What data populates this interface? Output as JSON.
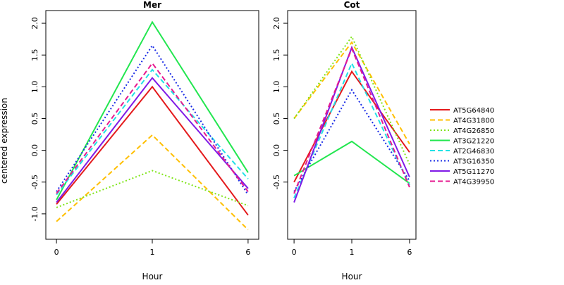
{
  "chart_data": [
    {
      "type": "line",
      "title": "Mer",
      "xlabel": "Hour",
      "ylabel": "centered expression",
      "x": [
        "0",
        "1",
        "6"
      ],
      "ylim": [
        -1.4,
        2.2
      ],
      "yticks": [
        -1.0,
        -0.5,
        0.0,
        0.5,
        1.0,
        1.5,
        2.0
      ],
      "yticklabels": [
        "-1.0",
        "-0.5",
        "0.0",
        "0.5",
        "1.0",
        "1.5",
        "2.0"
      ],
      "grid": false,
      "series": [
        {
          "name": "AT5G64840",
          "values": [
            -0.85,
            1.0,
            -1.02
          ]
        },
        {
          "name": "AT4G31800",
          "values": [
            -1.12,
            0.24,
            -1.25
          ]
        },
        {
          "name": "AT4G26850",
          "values": [
            -0.9,
            -0.32,
            -0.87
          ]
        },
        {
          "name": "AT3G21220",
          "values": [
            -0.78,
            2.02,
            -0.35
          ]
        },
        {
          "name": "AT2G46830",
          "values": [
            -0.7,
            1.27,
            -0.45
          ]
        },
        {
          "name": "AT3G16350",
          "values": [
            -0.65,
            1.65,
            -0.7
          ]
        },
        {
          "name": "AT5G11270",
          "values": [
            -0.82,
            1.14,
            -0.6
          ]
        },
        {
          "name": "AT4G39950",
          "values": [
            -0.68,
            1.37,
            -0.65
          ]
        }
      ]
    },
    {
      "type": "line",
      "title": "Cot",
      "xlabel": "Hour",
      "ylabel": "",
      "x": [
        "0",
        "1",
        "6"
      ],
      "ylim": [
        -1.4,
        2.2
      ],
      "yticks": [
        -0.5,
        0.0,
        0.5,
        1.0,
        1.5,
        2.0
      ],
      "yticklabels": [
        "-0.5",
        "0.0",
        "0.5",
        "1.0",
        "1.5",
        "2.0"
      ],
      "grid": false,
      "series": [
        {
          "name": "AT5G64840",
          "values": [
            -0.5,
            1.24,
            -0.03
          ]
        },
        {
          "name": "AT4G31800",
          "values": [
            0.5,
            1.7,
            0.1
          ]
        },
        {
          "name": "AT4G26850",
          "values": [
            0.5,
            1.79,
            -0.22
          ]
        },
        {
          "name": "AT3G21220",
          "values": [
            -0.4,
            0.14,
            -0.52
          ]
        },
        {
          "name": "AT2G46830",
          "values": [
            -0.75,
            1.37,
            -0.55
          ]
        },
        {
          "name": "AT3G16350",
          "values": [
            -0.65,
            0.95,
            -0.48
          ]
        },
        {
          "name": "AT5G11270",
          "values": [
            -0.82,
            1.62,
            -0.42
          ]
        },
        {
          "name": "AT4G39950",
          "values": [
            -0.68,
            1.6,
            -0.58
          ]
        }
      ]
    }
  ],
  "legend": {
    "position": "right",
    "entries": [
      {
        "label": "AT5G64840",
        "color": "#e41a1c",
        "dash": "solid"
      },
      {
        "label": "AT4G31800",
        "color": "#ffbf00",
        "dash": "dashed"
      },
      {
        "label": "AT4G26850",
        "color": "#80e51a",
        "dash": "dotted"
      },
      {
        "label": "AT3G21220",
        "color": "#22e64f",
        "dash": "solid"
      },
      {
        "label": "AT2G46830",
        "color": "#22e1e6",
        "dash": "dashed"
      },
      {
        "label": "AT3G16350",
        "color": "#1a2ce6",
        "dash": "dotted"
      },
      {
        "label": "AT5G11270",
        "color": "#7f1ae6",
        "dash": "solid"
      },
      {
        "label": "AT4G39950",
        "color": "#e61a8f",
        "dash": "dashed"
      }
    ]
  }
}
